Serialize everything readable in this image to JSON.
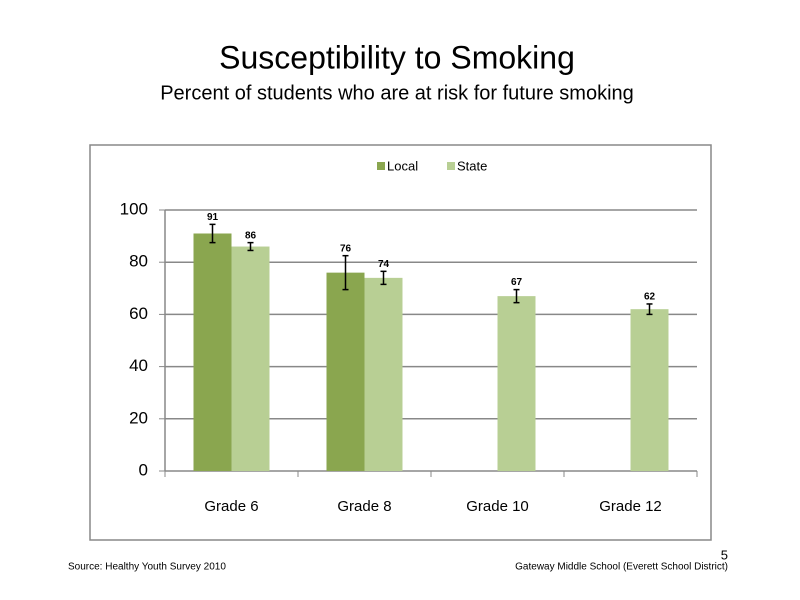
{
  "chart_data": {
    "type": "bar",
    "title": "Susceptibility to Smoking",
    "subtitle": "Percent of students who are at risk for future smoking",
    "categories": [
      "Grade 6",
      "Grade 8",
      "Grade 10",
      "Grade 12"
    ],
    "series": [
      {
        "name": "Local",
        "color": "#8aa64f",
        "values": [
          91,
          76,
          null,
          null
        ],
        "errors": [
          3.5,
          6.5,
          null,
          null
        ]
      },
      {
        "name": "State",
        "color": "#b8cf94",
        "values": [
          86,
          74,
          67,
          62
        ],
        "errors": [
          1.5,
          2.5,
          2.5,
          2
        ]
      }
    ],
    "ylim": [
      0,
      100
    ],
    "yticks": [
      0,
      20,
      40,
      60,
      80,
      100
    ],
    "grid": true,
    "legend": "top",
    "source": "Source: Healthy Youth Survey 2010",
    "footer": "Gateway Middle School (Everett School District)",
    "page_number": "5"
  }
}
